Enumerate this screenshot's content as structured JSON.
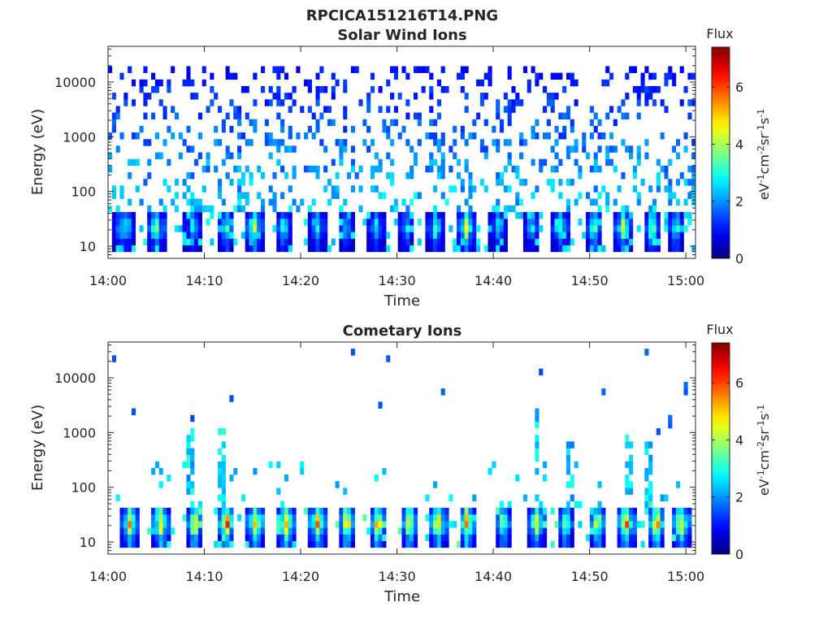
{
  "figure": {
    "title": "RPCICA151216T14.PNG"
  },
  "chart_data": [
    {
      "type": "heatmap",
      "title": "Solar Wind Ions",
      "xlabel": "Time",
      "ylabel": "Energy (eV)",
      "x_ticks": [
        "14:00",
        "14:10",
        "14:20",
        "14:30",
        "14:40",
        "14:50",
        "15:00"
      ],
      "xlim": [
        "14:00",
        "15:01"
      ],
      "y_scale": "log",
      "y_ticks": [
        10,
        100,
        1000,
        10000
      ],
      "ylim": [
        6,
        45000
      ],
      "grid": false,
      "colorbar": {
        "label_top": "Flux",
        "units": "eV-1cm-2sr-1s-1",
        "range": [
          0,
          7.4
        ],
        "ticks": [
          0,
          2,
          4,
          6
        ],
        "colormap": "jet"
      },
      "low_energy_bursts": [
        {
          "time": "14:01.3",
          "peak": 3.0
        },
        {
          "time": "14:02.0",
          "peak": 3.4
        },
        {
          "time": "14:05.0",
          "peak": 4.8
        },
        {
          "time": "14:08.8",
          "peak": 3.4
        },
        {
          "time": "14:12.3",
          "peak": 3.8
        },
        {
          "time": "14:15.2",
          "peak": 5.0
        },
        {
          "time": "14:18.2",
          "peak": 3.6
        },
        {
          "time": "14:21.7",
          "peak": 3.6
        },
        {
          "time": "14:24.7",
          "peak": 3.2
        },
        {
          "time": "14:27.8",
          "peak": 3.4
        },
        {
          "time": "14:31.0",
          "peak": 3.2
        },
        {
          "time": "14:34.0",
          "peak": 4.0
        },
        {
          "time": "14:37.2",
          "peak": 5.2
        },
        {
          "time": "14:40.5",
          "peak": 3.2
        },
        {
          "time": "14:44.0",
          "peak": 3.2
        },
        {
          "time": "14:47.0",
          "peak": 3.8
        },
        {
          "time": "14:50.5",
          "peak": 4.4
        },
        {
          "time": "14:53.5",
          "peak": 4.8
        },
        {
          "time": "14:56.5",
          "peak": 5.0
        },
        {
          "time": "14:59.0",
          "peak": 4.0
        }
      ],
      "background_flux": {
        "energy_range": [
          40,
          20000
        ],
        "level": 1.6
      }
    },
    {
      "type": "heatmap",
      "title": "Cometary Ions",
      "xlabel": "Time",
      "ylabel": "Energy (eV)",
      "x_ticks": [
        "14:00",
        "14:10",
        "14:20",
        "14:30",
        "14:40",
        "14:50",
        "15:00"
      ],
      "xlim": [
        "14:00",
        "15:01"
      ],
      "y_scale": "log",
      "y_ticks": [
        10,
        100,
        1000,
        10000
      ],
      "ylim": [
        6,
        45000
      ],
      "grid": false,
      "colorbar": {
        "label_top": "Flux",
        "units": "eV-1cm-2sr-1s-1",
        "range": [
          0,
          7.4
        ],
        "ticks": [
          0,
          2,
          4,
          6
        ],
        "colormap": "jet"
      },
      "low_energy_bursts": [
        {
          "time": "14:02.3",
          "peak": 6.0
        },
        {
          "time": "14:05.5",
          "peak": 6.2
        },
        {
          "time": "14:09.0",
          "peak": 6.4
        },
        {
          "time": "14:12.3",
          "peak": 7.0
        },
        {
          "time": "14:15.3",
          "peak": 6.6
        },
        {
          "time": "14:18.5",
          "peak": 6.4
        },
        {
          "time": "14:21.8",
          "peak": 6.4
        },
        {
          "time": "14:24.8",
          "peak": 6.4
        },
        {
          "time": "14:28.0",
          "peak": 6.2
        },
        {
          "time": "14:31.3",
          "peak": 6.2
        },
        {
          "time": "14:34.3",
          "peak": 6.4
        },
        {
          "time": "14:37.3",
          "peak": 6.8
        },
        {
          "time": "14:41.0",
          "peak": 5.2
        },
        {
          "time": "14:44.5",
          "peak": 5.6
        },
        {
          "time": "14:47.5",
          "peak": 4.8
        },
        {
          "time": "14:50.8",
          "peak": 6.0
        },
        {
          "time": "14:53.8",
          "peak": 6.8
        },
        {
          "time": "14:57.0",
          "peak": 6.8
        },
        {
          "time": "14:59.5",
          "peak": 6.4
        }
      ],
      "upward_plumes": [
        {
          "time": "14:08.5",
          "max_energy": 1300
        },
        {
          "time": "14:11.8",
          "max_energy": 1800
        },
        {
          "time": "14:44.5",
          "max_energy": 2500
        },
        {
          "time": "14:48.0",
          "max_energy": 700
        },
        {
          "time": "14:54.0",
          "max_energy": 900
        },
        {
          "time": "14:56.0",
          "max_energy": 600
        }
      ]
    }
  ]
}
